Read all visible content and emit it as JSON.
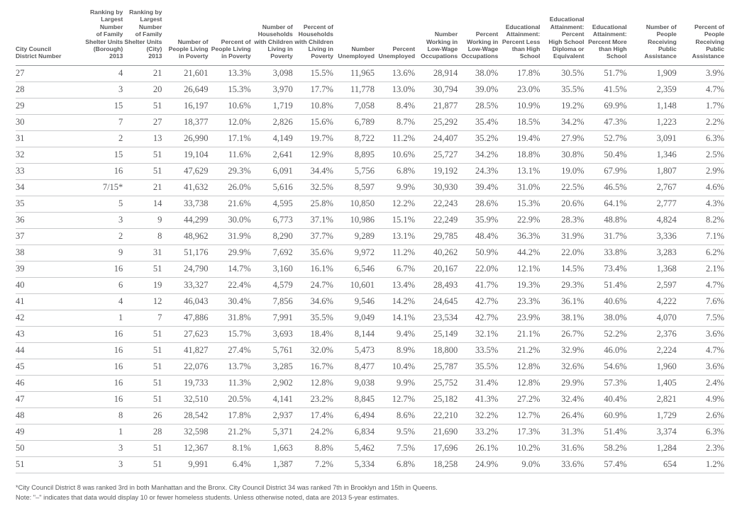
{
  "colors": {
    "text": "#58595b",
    "data_text": "#56575a",
    "header_rule": "#939598",
    "row_rule": "#c9cacc",
    "background": "#ffffff"
  },
  "table": {
    "columns": [
      "City Council\nDistrict Number",
      "Ranking by\nLargest\nNumber\nof Family\nShelter Units\n(Borough)\n2013",
      "Ranking by\nLargest\nNumber\nof Family\nShelter Units\n(City)\n2013",
      "Number of\nPeople Living\nin Poverty",
      "Percent of\nPeople Living\nin Poverty",
      "Number of\nHouseholds\nwith Children\nLiving in\nPoverty",
      "Percent of\nHouseholds\nwith Children\nLiving in\nPoverty",
      "Number\nUnemployed",
      "Percent\nUnemployed",
      "Number\nWorking in\nLow-Wage\nOccupations",
      "Percent\nWorking in\nLow-Wage\nOccupations",
      "Educational\nAttainment:\nPercent Less\nthan High\nSchool",
      "Educational\nAttainment:\nPercent\nHigh School\nDiploma or\nEquivalent",
      "Educational\nAttainment:\nPercent More\nthan High\nSchool",
      "Number of\nPeople\nReceiving\nPublic\nAssistance",
      "Percent of\nPeople\nReceiving\nPublic\nAssistance"
    ],
    "rows": [
      [
        "27",
        "4",
        "21",
        "21,601",
        "13.3%",
        "3,098",
        "15.5%",
        "11,965",
        "13.6%",
        "28,914",
        "38.0%",
        "17.8%",
        "30.5%",
        "51.7%",
        "1,909",
        "3.9%"
      ],
      [
        "28",
        "3",
        "20",
        "26,649",
        "15.3%",
        "3,970",
        "17.7%",
        "11,778",
        "13.0%",
        "30,794",
        "39.0%",
        "23.0%",
        "35.5%",
        "41.5%",
        "2,359",
        "4.7%"
      ],
      [
        "29",
        "15",
        "51",
        "16,197",
        "10.6%",
        "1,719",
        "10.8%",
        "7,058",
        "8.4%",
        "21,877",
        "28.5%",
        "10.9%",
        "19.2%",
        "69.9%",
        "1,148",
        "1.7%"
      ],
      [
        "30",
        "7",
        "27",
        "18,377",
        "12.0%",
        "2,826",
        "15.6%",
        "6,789",
        "8.7%",
        "25,292",
        "35.4%",
        "18.5%",
        "34.2%",
        "47.3%",
        "1,223",
        "2.2%"
      ],
      [
        "31",
        "2",
        "13",
        "26,990",
        "17.1%",
        "4,149",
        "19.7%",
        "8,722",
        "11.2%",
        "24,407",
        "35.2%",
        "19.4%",
        "27.9%",
        "52.7%",
        "3,091",
        "6.3%"
      ],
      [
        "32",
        "15",
        "51",
        "19,104",
        "11.6%",
        "2,641",
        "12.9%",
        "8,895",
        "10.6%",
        "25,727",
        "34.2%",
        "18.8%",
        "30.8%",
        "50.4%",
        "1,346",
        "2.5%"
      ],
      [
        "33",
        "16",
        "51",
        "47,629",
        "29.3%",
        "6,091",
        "34.4%",
        "5,756",
        "6.8%",
        "19,192",
        "24.3%",
        "13.1%",
        "19.0%",
        "67.9%",
        "1,807",
        "2.9%"
      ],
      [
        "34",
        "7/15*",
        "21",
        "41,632",
        "26.0%",
        "5,616",
        "32.5%",
        "8,597",
        "9.9%",
        "30,930",
        "39.4%",
        "31.0%",
        "22.5%",
        "46.5%",
        "2,767",
        "4.6%"
      ],
      [
        "35",
        "5",
        "14",
        "33,738",
        "21.6%",
        "4,595",
        "25.8%",
        "10,850",
        "12.2%",
        "22,243",
        "28.6%",
        "15.3%",
        "20.6%",
        "64.1%",
        "2,777",
        "4.3%"
      ],
      [
        "36",
        "3",
        "9",
        "44,299",
        "30.0%",
        "6,773",
        "37.1%",
        "10,986",
        "15.1%",
        "22,249",
        "35.9%",
        "22.9%",
        "28.3%",
        "48.8%",
        "4,824",
        "8.2%"
      ],
      [
        "37",
        "2",
        "8",
        "48,962",
        "31.9%",
        "8,290",
        "37.7%",
        "9,289",
        "13.1%",
        "29,785",
        "48.4%",
        "36.3%",
        "31.9%",
        "31.7%",
        "3,336",
        "7.1%"
      ],
      [
        "38",
        "9",
        "31",
        "51,176",
        "29.9%",
        "7,692",
        "35.6%",
        "9,972",
        "11.2%",
        "40,262",
        "50.9%",
        "44.2%",
        "22.0%",
        "33.8%",
        "3,283",
        "6.2%"
      ],
      [
        "39",
        "16",
        "51",
        "24,790",
        "14.7%",
        "3,160",
        "16.1%",
        "6,546",
        "6.7%",
        "20,167",
        "22.0%",
        "12.1%",
        "14.5%",
        "73.4%",
        "1,368",
        "2.1%"
      ],
      [
        "40",
        "6",
        "19",
        "33,327",
        "22.4%",
        "4,579",
        "24.7%",
        "10,601",
        "13.4%",
        "28,493",
        "41.7%",
        "19.3%",
        "29.3%",
        "51.4%",
        "2,597",
        "4.7%"
      ],
      [
        "41",
        "4",
        "12",
        "46,043",
        "30.4%",
        "7,856",
        "34.6%",
        "9,546",
        "14.2%",
        "24,645",
        "42.7%",
        "23.3%",
        "36.1%",
        "40.6%",
        "4,222",
        "7.6%"
      ],
      [
        "42",
        "1",
        "7",
        "47,886",
        "31.8%",
        "7,991",
        "35.5%",
        "9,049",
        "14.1%",
        "23,534",
        "42.7%",
        "23.9%",
        "38.1%",
        "38.0%",
        "4,070",
        "7.5%"
      ],
      [
        "43",
        "16",
        "51",
        "27,623",
        "15.7%",
        "3,693",
        "18.4%",
        "8,144",
        "9.4%",
        "25,149",
        "32.1%",
        "21.1%",
        "26.7%",
        "52.2%",
        "2,376",
        "3.6%"
      ],
      [
        "44",
        "16",
        "51",
        "41,827",
        "27.4%",
        "5,761",
        "32.0%",
        "5,473",
        "8.9%",
        "18,800",
        "33.5%",
        "21.2%",
        "32.9%",
        "46.0%",
        "2,224",
        "4.7%"
      ],
      [
        "45",
        "16",
        "51",
        "22,076",
        "13.7%",
        "3,285",
        "16.7%",
        "8,477",
        "10.4%",
        "25,787",
        "35.5%",
        "12.8%",
        "32.6%",
        "54.6%",
        "1,960",
        "3.6%"
      ],
      [
        "46",
        "16",
        "51",
        "19,733",
        "11.3%",
        "2,902",
        "12.8%",
        "9,038",
        "9.9%",
        "25,752",
        "31.4%",
        "12.8%",
        "29.9%",
        "57.3%",
        "1,405",
        "2.4%"
      ],
      [
        "47",
        "16",
        "51",
        "32,510",
        "20.5%",
        "4,141",
        "23.2%",
        "8,845",
        "12.7%",
        "25,182",
        "41.3%",
        "27.2%",
        "32.4%",
        "40.4%",
        "2,821",
        "4.9%"
      ],
      [
        "48",
        "8",
        "26",
        "28,542",
        "17.8%",
        "2,937",
        "17.4%",
        "6,494",
        "8.6%",
        "22,210",
        "32.2%",
        "12.7%",
        "26.4%",
        "60.9%",
        "1,729",
        "2.6%"
      ],
      [
        "49",
        "1",
        "28",
        "32,598",
        "21.2%",
        "5,371",
        "24.2%",
        "6,834",
        "9.5%",
        "21,690",
        "33.2%",
        "17.3%",
        "31.3%",
        "51.4%",
        "3,374",
        "6.3%"
      ],
      [
        "50",
        "3",
        "51",
        "12,367",
        "8.1%",
        "1,663",
        "8.8%",
        "5,462",
        "7.5%",
        "17,696",
        "26.1%",
        "10.2%",
        "31.6%",
        "58.2%",
        "1,284",
        "2.3%"
      ],
      [
        "51",
        "3",
        "51",
        "9,991",
        "6.4%",
        "1,387",
        "7.2%",
        "5,334",
        "6.8%",
        "18,258",
        "24.9%",
        "9.0%",
        "33.6%",
        "57.4%",
        "654",
        "1.2%"
      ]
    ]
  },
  "footnotes": {
    "line1": "*City Council District 8 was ranked 3rd in both Manhattan and the Bronx. City Council District 34 was ranked 7th in Brooklyn and 15th in Queens.",
    "line2": "Note: \"–\" indicates that data would display 10 or fewer homeless students. Unless otherwise noted, data are 2013 5-year estimates."
  }
}
